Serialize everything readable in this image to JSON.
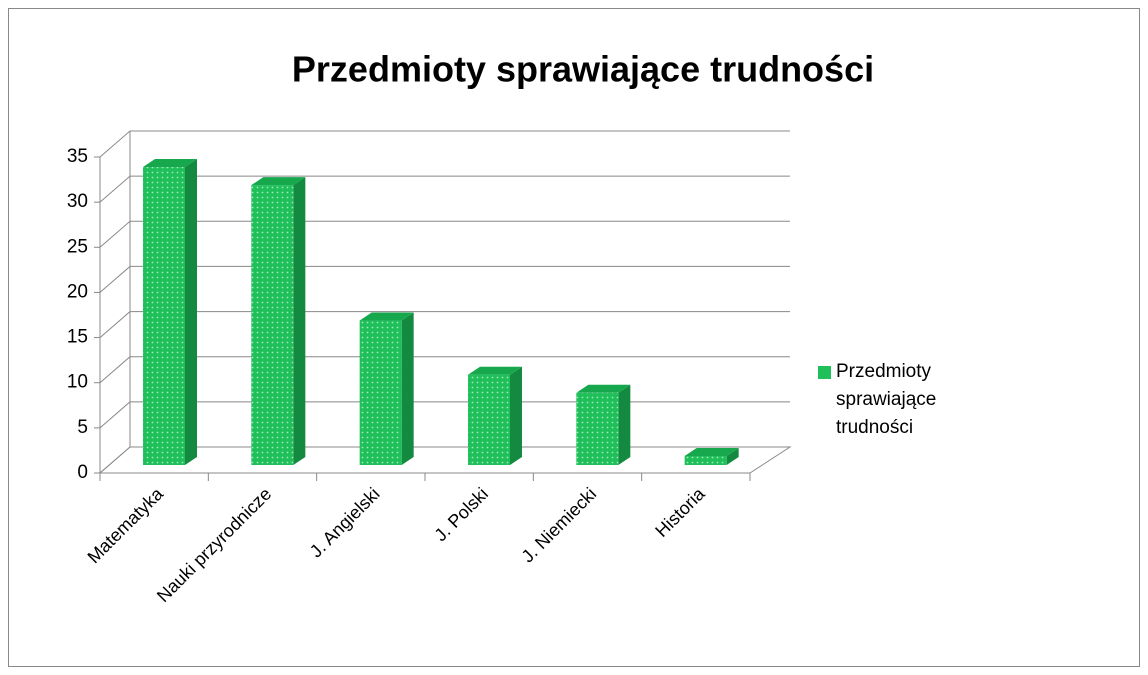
{
  "chart_data": {
    "type": "bar",
    "title": "Przedmioty sprawiające trudności",
    "categories": [
      "Matematyka",
      "Nauki przyrodnicze",
      "J. Angielski",
      "J. Polski",
      "J. Niemiecki",
      "Historia"
    ],
    "series": [
      {
        "name": "Przedmioty sprawiające trudności",
        "color": "#1fbf5a",
        "values": [
          33,
          31,
          16,
          10,
          8,
          1
        ]
      }
    ],
    "ylim": [
      0,
      35
    ],
    "yticks": [
      0,
      5,
      10,
      15,
      20,
      25,
      30,
      35
    ],
    "grid": true,
    "legend": "right"
  }
}
